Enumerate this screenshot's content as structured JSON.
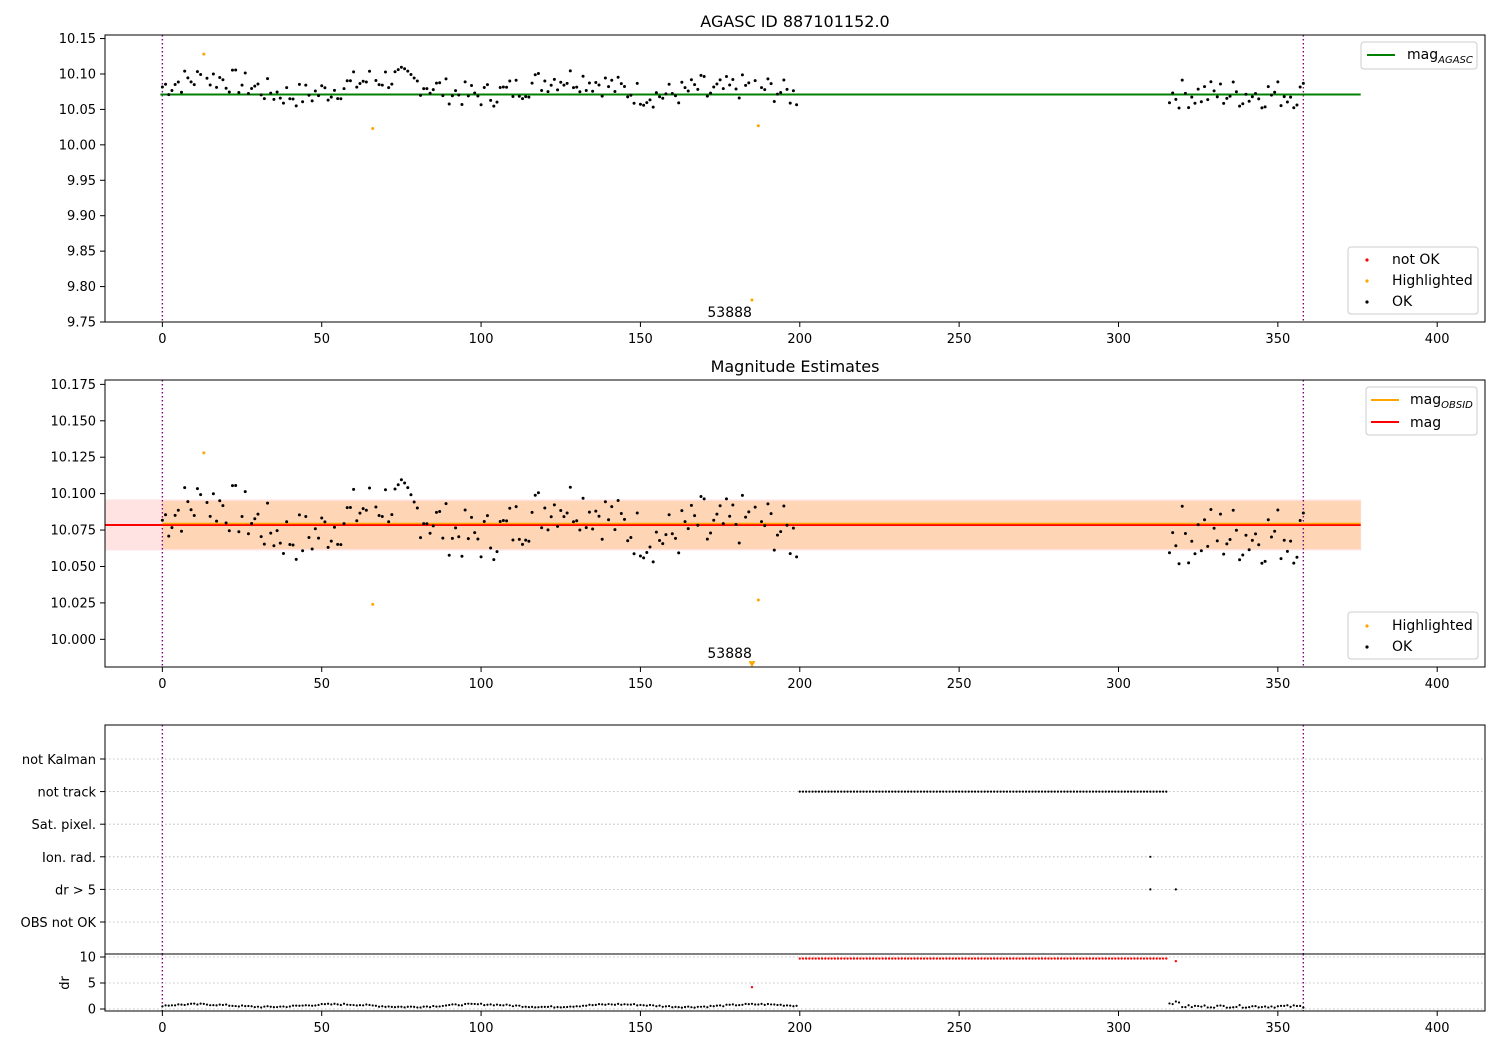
{
  "chart_data": [
    {
      "type": "scatter",
      "title": "AGASC ID 887101152.0",
      "xlabel": "",
      "ylabel": "",
      "xlim": [
        -18,
        415
      ],
      "ylim": [
        9.75,
        10.155
      ],
      "xticks": [
        "0",
        "50",
        "100",
        "150",
        "200",
        "250",
        "300",
        "350",
        "400"
      ],
      "yticks": [
        "9.75",
        "9.80",
        "9.85",
        "9.90",
        "9.95",
        "10.00",
        "10.05",
        "10.10",
        "10.15"
      ],
      "vlines": [
        0,
        358
      ],
      "hline": {
        "name": "mag_AGASC",
        "y": 10.071,
        "x_range": [
          0,
          376
        ],
        "color": "#008000"
      },
      "annotation": {
        "text": "53888",
        "x": 178,
        "y": 9.763
      },
      "highlighted_points": [
        [
          13,
          10.128
        ],
        [
          66,
          10.023
        ],
        [
          187,
          10.027
        ],
        [
          185,
          9.781
        ]
      ],
      "legend_lines": [
        {
          "label": "mag",
          "sub": "AGASC",
          "color": "#008000"
        }
      ],
      "legend_points": [
        {
          "label": "not OK",
          "color": "#ff0000"
        },
        {
          "label": "Highlighted",
          "color": "#ffa500"
        },
        {
          "label": "OK",
          "color": "#000000"
        }
      ]
    },
    {
      "type": "scatter",
      "title": "Magnitude Estimates",
      "xlabel": "",
      "ylabel": "",
      "xlim": [
        -18,
        415
      ],
      "ylim": [
        9.981,
        10.178
      ],
      "xticks": [
        "0",
        "50",
        "100",
        "150",
        "200",
        "250",
        "300",
        "350",
        "400"
      ],
      "yticks": [
        "10.000",
        "10.025",
        "10.050",
        "10.075",
        "10.100",
        "10.125",
        "10.150",
        "10.175"
      ],
      "vlines": [
        0,
        358
      ],
      "mag_line": {
        "name": "mag",
        "y": 10.0785,
        "band": [
          10.061,
          10.096
        ],
        "x_range": [
          -18,
          376
        ],
        "color": "#ff0000"
      },
      "mag_obsid_line": {
        "name": "mag_OBSID",
        "y": 10.0785,
        "band": [
          10.062,
          10.095
        ],
        "x_range": [
          0,
          376
        ],
        "color": "#ffa500"
      },
      "annotation": {
        "text": "53888",
        "x": 178,
        "y": 9.99
      },
      "highlighted_points": [
        [
          13,
          10.128
        ],
        [
          66,
          10.024
        ],
        [
          187,
          10.027
        ]
      ],
      "offscale_marker": {
        "x": 185,
        "y": 9.983
      },
      "legend_lines": [
        {
          "label": "mag",
          "sub": "OBSID",
          "color": "#ffa500"
        },
        {
          "label": "mag",
          "sub": "",
          "color": "#ff0000"
        }
      ],
      "legend_points": [
        {
          "label": "Highlighted",
          "color": "#ffa500"
        },
        {
          "label": "OK",
          "color": "#000000"
        }
      ]
    },
    {
      "type": "scatter",
      "title": "",
      "xlabel": "",
      "ylabel": "",
      "xlim": [
        -18,
        415
      ],
      "xticks": [
        "0",
        "50",
        "100",
        "150",
        "200",
        "250",
        "300",
        "350",
        "400"
      ],
      "flag_rows": [
        "not Kalman",
        "not track",
        "Sat. pixel.",
        "Ion. rad.",
        "dr > 5",
        "OBS not OK"
      ],
      "flag_points": [
        {
          "row": "not track",
          "x_start": 200,
          "x_end": 315,
          "step": 1
        },
        {
          "row": "Ion. rad.",
          "x": [
            310
          ]
        },
        {
          "row": "dr > 5",
          "x": [
            310,
            318
          ]
        }
      ],
      "vlines": [
        0,
        358
      ]
    },
    {
      "type": "scatter",
      "title": "",
      "xlabel": "",
      "ylabel": "dr",
      "xlim": [
        -18,
        415
      ],
      "ylim": [
        0,
        10
      ],
      "yticks": [
        "0",
        "5",
        "10"
      ],
      "dr_flat": {
        "x_start": 200,
        "x_end": 315,
        "y": 9.7,
        "color": "#ff0000"
      },
      "dr_red_points": [
        [
          185,
          4.2
        ],
        [
          318,
          9.2
        ]
      ],
      "vlines": [
        0,
        358
      ]
    }
  ]
}
